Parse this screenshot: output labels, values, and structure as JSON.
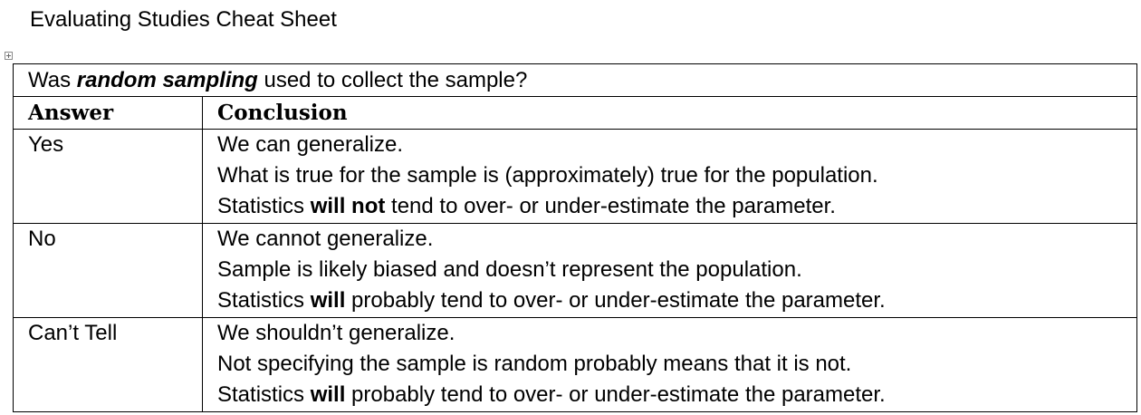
{
  "document": {
    "title": "Evaluating Studies Cheat Sheet"
  },
  "table": {
    "question": {
      "prefix": "Was ",
      "emphasis": "random sampling",
      "suffix": " used to collect the sample?"
    },
    "headers": {
      "answer": "Answer",
      "conclusion": "Conclusion"
    },
    "rows": [
      {
        "answer": "Yes",
        "lines": [
          {
            "text": "We can generalize."
          },
          {
            "text": "What is true for the sample is (approximately) true for the population."
          },
          {
            "pre": "Statistics ",
            "bold": "will not",
            "post": " tend to over- or under-estimate the parameter."
          }
        ]
      },
      {
        "answer": "No",
        "lines": [
          {
            "text": "We cannot generalize."
          },
          {
            "text": "Sample is likely biased and doesn’t represent the population."
          },
          {
            "pre": "Statistics ",
            "bold": "will",
            "post": " probably tend to over- or under-estimate the parameter."
          }
        ]
      },
      {
        "answer": "Can’t Tell",
        "lines": [
          {
            "text": "We shouldn’t generalize."
          },
          {
            "text": "Not specifying the sample is random probably means that it is not."
          },
          {
            "pre": "Statistics ",
            "bold": "will",
            "post": " probably tend to over- or under-estimate the parameter."
          }
        ]
      }
    ]
  }
}
